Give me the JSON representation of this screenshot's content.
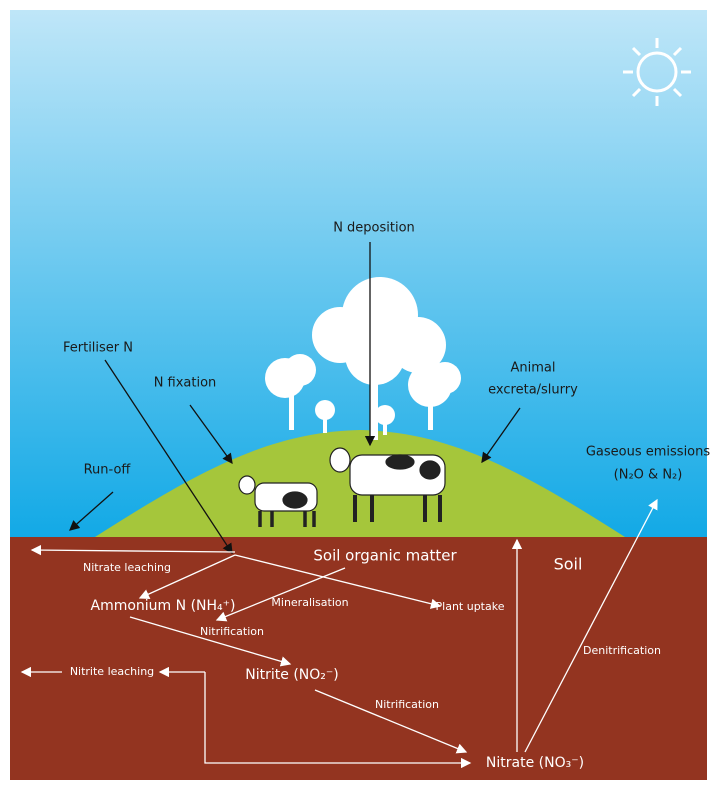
{
  "labels": {
    "n_deposition": "N deposition",
    "fertiliser_n": "Fertiliser N",
    "n_fixation": "N fixation",
    "animal_excreta": [
      "Animal",
      "excreta/slurry"
    ],
    "run_off": "Run-off",
    "gaseous_emissions": [
      "Gaseous emissions",
      "(N₂O & N₂)"
    ],
    "soil_organic_matter": "Soil organic matter",
    "soil": "Soil",
    "nitrate_leaching": "Nitrate leaching",
    "ammonium": "Ammonium N (NH₄⁺)",
    "mineralisation": "Mineralisation",
    "plant_uptake": "Plant uptake",
    "nitrification_1": "Nitrification",
    "nitrite": "Nitrite (NO₂⁻)",
    "nitrite_leaching": "Nitrite leaching",
    "nitrification_2": "Nitrification",
    "denitrification": "Denitrification",
    "nitrate": "Nitrate (NO₃⁻)"
  }
}
